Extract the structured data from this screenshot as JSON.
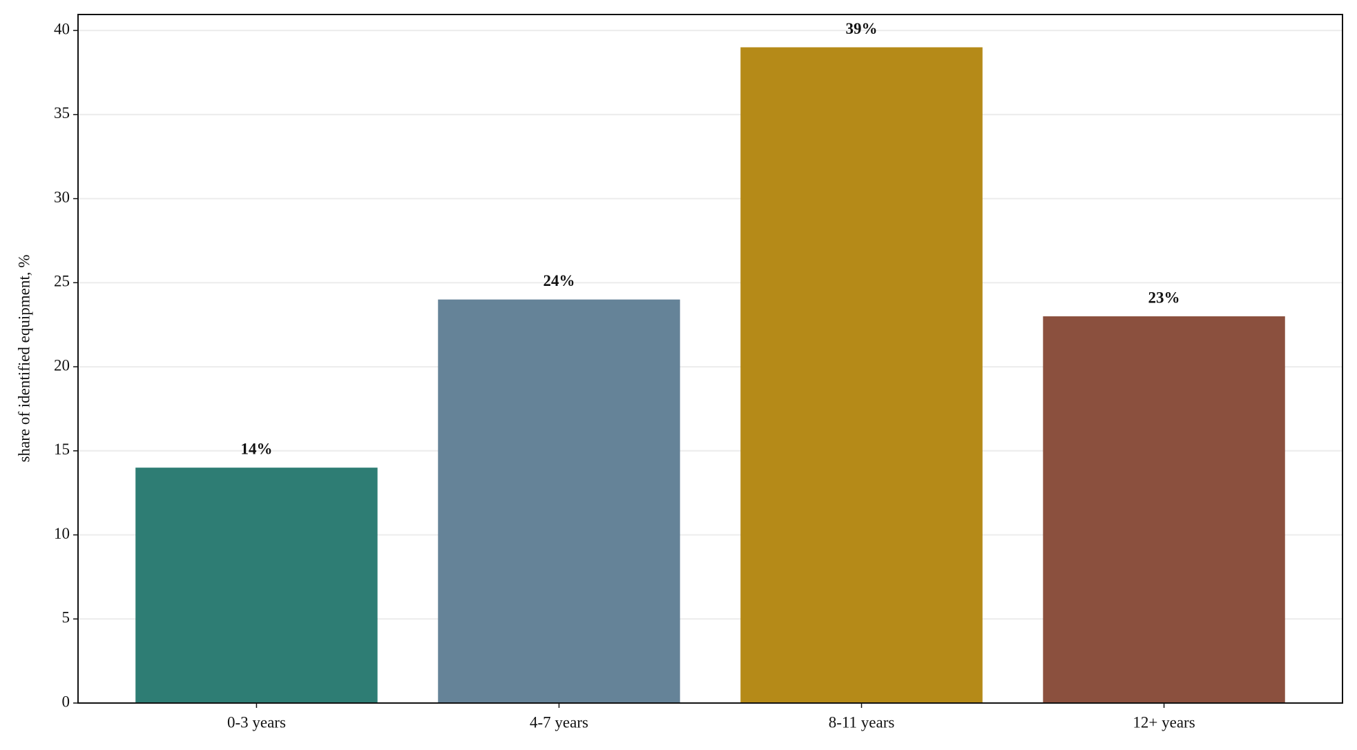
{
  "chart_data": {
    "type": "bar",
    "y_label": "share of identified equipment, %",
    "categories": [
      "0-3 years",
      "4-7 years",
      "8-11 years",
      "12+ years"
    ],
    "values": [
      14,
      24,
      39,
      23
    ],
    "value_labels": [
      "14%",
      "24%",
      "39%",
      "23%"
    ],
    "colors": [
      "#2e7d74",
      "#658398",
      "#b58a18",
      "#8b503e"
    ],
    "ylim": [
      0,
      40.95
    ],
    "yticks": [
      0,
      5,
      10,
      15,
      20,
      25,
      30,
      35,
      40
    ],
    "grid": true
  }
}
